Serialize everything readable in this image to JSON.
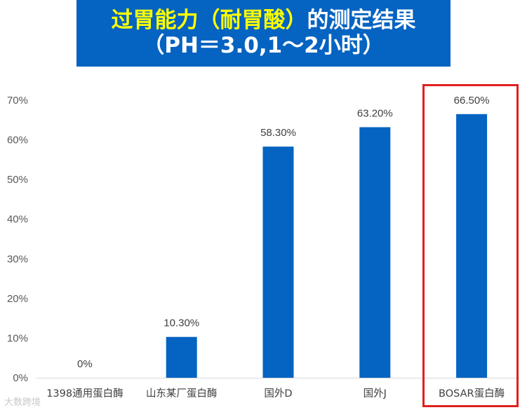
{
  "title": {
    "highlight": "过胃能力（耐胃酸）",
    "rest": "的测定结果",
    "line2": "（PH＝3.0,1～2小时）"
  },
  "colors": {
    "bar": "#0563c1",
    "title_bg": "#0563c1",
    "title_highlight": "#ffff00",
    "highlight_box": "#e02020"
  },
  "chart_data": {
    "type": "bar",
    "categories": [
      "1398通用蛋白酶",
      "山东某厂蛋白酶",
      "国外D",
      "国外J",
      "BOSAR蛋白酶"
    ],
    "values": [
      0,
      10.3,
      58.3,
      63.2,
      66.5
    ],
    "data_labels": [
      "0%",
      "10.30%",
      "58.30%",
      "63.20%",
      "66.50%"
    ],
    "y_ticks": [
      "0%",
      "10%",
      "20%",
      "30%",
      "40%",
      "50%",
      "60%",
      "70%"
    ],
    "ylim": [
      0,
      70
    ],
    "grid": false,
    "highlighted_category": "BOSAR蛋白酶"
  },
  "watermark": "大数跨境"
}
